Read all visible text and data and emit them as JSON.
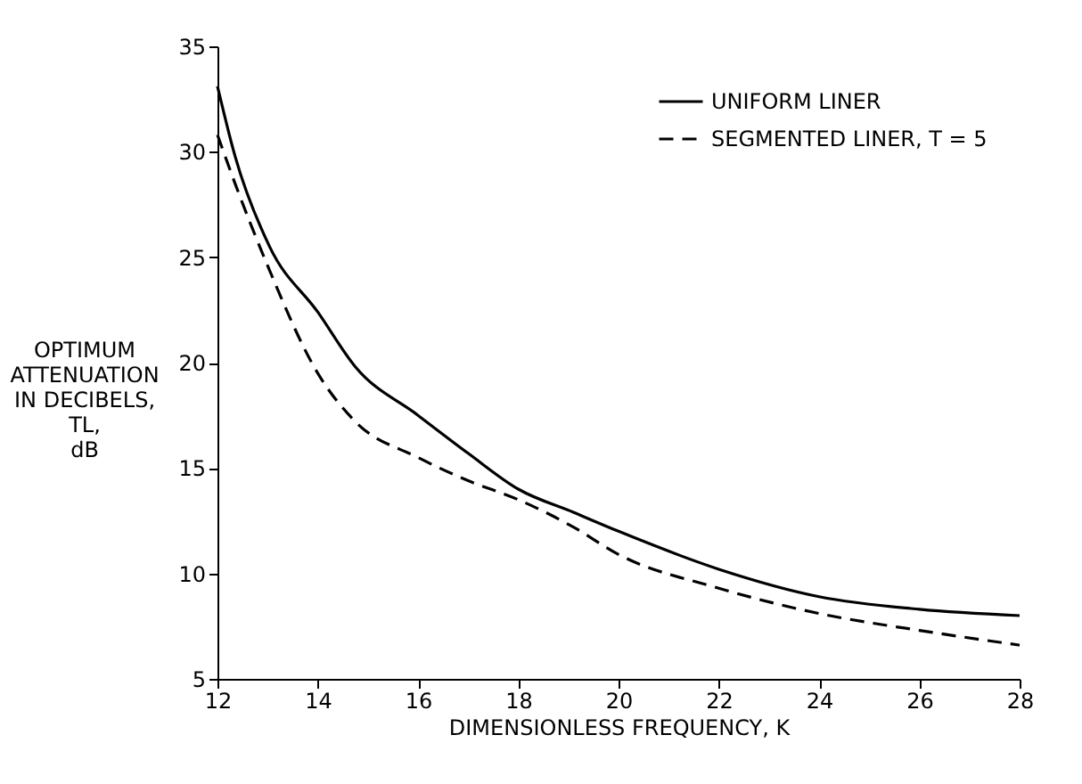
{
  "chart_data": {
    "type": "line",
    "xlabel": "DIMENSIONLESS FREQUENCY, K",
    "ylabel": "OPTIMUM\nATTENUATION\nIN DECIBELS,\nTL,\ndB",
    "xlim": [
      12,
      28
    ],
    "xticks": [
      12,
      14,
      16,
      18,
      20,
      22,
      24,
      26,
      28
    ],
    "ylim": [
      5,
      35
    ],
    "yticks": [
      5,
      10,
      15,
      20,
      25,
      30,
      35
    ],
    "grid": false,
    "legend": "top right",
    "marker": "none",
    "series": [
      {
        "name": "UNIFORM LINER",
        "color": "#000000",
        "line_style": "solid",
        "x": [
          12,
          12.35,
          13.04,
          14,
          14.75,
          16,
          17,
          18,
          19.1,
          20,
          22,
          24,
          26,
          28
        ],
        "values": [
          33.1,
          29.8,
          25.5,
          22.4,
          19.8,
          17.5,
          15.7,
          14.0,
          12.9,
          12.0,
          10.2,
          8.9,
          8.3,
          8.0
        ]
      },
      {
        "name": "SEGMENTED LINER, T = 5",
        "color": "#000000",
        "line_style": "dashed",
        "x": [
          12,
          12.35,
          13,
          14,
          14.75,
          16,
          17,
          18,
          19.1,
          20,
          22,
          24,
          26,
          28
        ],
        "values": [
          30.8,
          28.5,
          24.6,
          19.5,
          17.2,
          15.5,
          14.4,
          13.5,
          12.2,
          10.9,
          9.3,
          8.1,
          7.3,
          6.6
        ]
      }
    ]
  }
}
